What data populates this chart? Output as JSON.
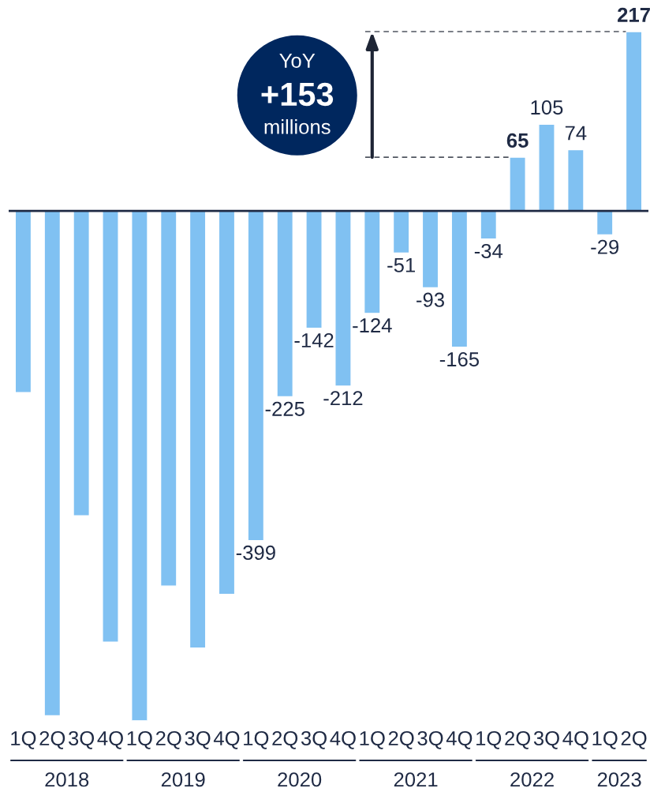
{
  "chart_data": {
    "type": "bar",
    "categories": [
      "1Q",
      "2Q",
      "3Q",
      "4Q",
      "1Q",
      "2Q",
      "3Q",
      "4Q",
      "1Q",
      "2Q",
      "3Q",
      "4Q",
      "1Q",
      "2Q",
      "3Q",
      "4Q",
      "1Q",
      "2Q",
      "3Q",
      "4Q",
      "1Q",
      "2Q"
    ],
    "values": [
      -220,
      -611,
      -369,
      -522,
      -617,
      -454,
      -529,
      -464,
      -399,
      -225,
      -142,
      -212,
      -124,
      -51,
      -93,
      -165,
      -34,
      65,
      105,
      74,
      -29,
      217
    ],
    "value_labels": [
      null,
      null,
      null,
      null,
      null,
      null,
      null,
      null,
      "-399",
      "-225",
      "-142",
      "-212",
      "-124",
      "-51",
      "-93",
      "-165",
      "-34",
      "65",
      "105",
      "74",
      "-29",
      "217"
    ],
    "color": "#80c1f2",
    "tick_labels": "x",
    "ref_lines": [
      {
        "axis": "y",
        "value": 65,
        "line_style": "dashed",
        "color": "#505560"
      },
      {
        "axis": "y",
        "value": 217,
        "line_style": "dashed",
        "color": "#505560"
      }
    ],
    "annotations": [
      "YoY",
      "+153",
      "millions",
      "2018",
      "2019",
      "2020",
      "2021",
      "2022",
      "2023"
    ]
  }
}
